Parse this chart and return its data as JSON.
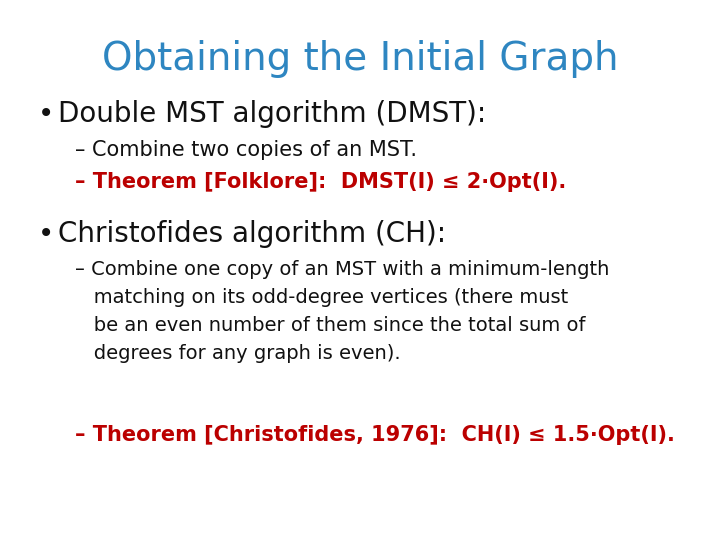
{
  "title": "Obtaining the Initial Graph",
  "title_color": "#2E86C1",
  "title_fontsize": 28,
  "bg_color": "#FFFFFF",
  "bullet1": "Double MST algorithm (DMST):",
  "bullet1_color": "#111111",
  "bullet1_fontsize": 20,
  "sub1a": "– Combine two copies of an MST.",
  "sub1a_color": "#111111",
  "sub1a_fontsize": 15,
  "sub1b": "– Theorem [Folklore]:  DMST(I) ≤ 2·Opt(I).",
  "sub1b_color": "#BB0000",
  "sub1b_fontsize": 15,
  "bullet2": "Christofides algorithm (CH):",
  "bullet2_color": "#111111",
  "bullet2_fontsize": 20,
  "sub2a_line1": "– Combine one copy of an MST with a minimum-length",
  "sub2a_line2": "   matching on its odd-degree vertices (there must",
  "sub2a_line3": "   be an even number of them since the total sum of",
  "sub2a_line4": "   degrees for any graph is even).",
  "sub2a_color": "#111111",
  "sub2a_fontsize": 14,
  "sub2b": "– Theorem [Christofides, 1976]:  CH(I) ≤ 1.5·Opt(I).",
  "sub2b_color": "#BB0000",
  "sub2b_fontsize": 15
}
